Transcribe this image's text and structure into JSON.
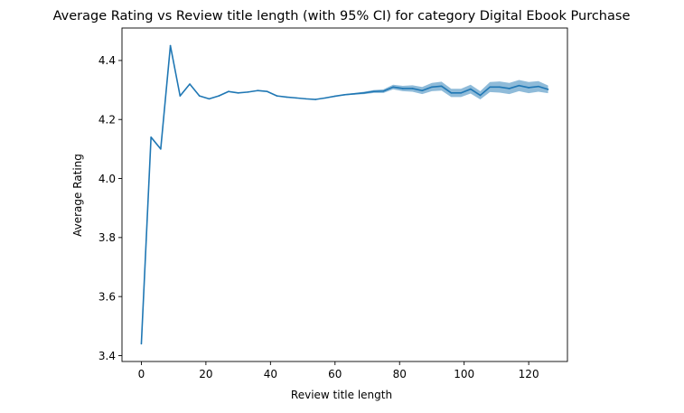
{
  "chart_data": {
    "type": "line",
    "title": "Average Rating vs Review title length (with 95% CI) for category Digital Ebook Purchase",
    "xlabel": "Review title length",
    "ylabel": "Average Rating",
    "xlim": [
      -6,
      132
    ],
    "ylim": [
      3.38,
      4.51
    ],
    "xticks": [
      0,
      20,
      40,
      60,
      80,
      100,
      120
    ],
    "yticks": [
      3.4,
      3.6,
      3.8,
      4.0,
      4.2,
      4.4
    ],
    "xtick_labels": [
      "0",
      "20",
      "40",
      "60",
      "80",
      "100",
      "120"
    ],
    "ytick_labels": [
      "3.4",
      "3.6",
      "3.8",
      "4.0",
      "4.2",
      "4.4"
    ],
    "grid": false,
    "line_color": "#1f77b4",
    "ci_color": "#1f77b4",
    "series": [
      {
        "x": [
          0,
          3,
          6,
          9,
          12,
          15,
          18,
          21,
          24,
          27,
          30,
          33,
          36,
          39,
          42,
          45,
          48,
          51,
          54,
          57,
          60,
          63,
          66,
          69,
          72,
          75,
          78,
          81,
          84,
          87,
          90,
          93,
          96,
          99,
          102,
          105,
          108,
          111,
          114,
          117,
          120,
          123,
          126
        ],
        "y": [
          3.44,
          4.14,
          4.1,
          4.45,
          4.28,
          4.32,
          4.28,
          4.27,
          4.28,
          4.295,
          4.29,
          4.293,
          4.298,
          4.295,
          4.28,
          4.276,
          4.273,
          4.27,
          4.268,
          4.273,
          4.279,
          4.284,
          4.287,
          4.29,
          4.295,
          4.296,
          4.31,
          4.305,
          4.305,
          4.298,
          4.31,
          4.313,
          4.29,
          4.29,
          4.303,
          4.282,
          4.31,
          4.31,
          4.305,
          4.315,
          4.308,
          4.312,
          4.302
        ],
        "ci_lower": [
          3.44,
          4.138,
          4.098,
          4.448,
          4.279,
          4.319,
          4.279,
          4.269,
          4.279,
          4.294,
          4.289,
          4.292,
          4.297,
          4.294,
          4.279,
          4.275,
          4.272,
          4.269,
          4.267,
          4.272,
          4.278,
          4.282,
          4.284,
          4.286,
          4.29,
          4.29,
          4.302,
          4.296,
          4.294,
          4.286,
          4.296,
          4.298,
          4.276,
          4.276,
          4.288,
          4.268,
          4.293,
          4.291,
          4.286,
          4.296,
          4.289,
          4.294,
          4.289
        ],
        "ci_upper": [
          3.44,
          4.142,
          4.102,
          4.452,
          4.281,
          4.321,
          4.281,
          4.271,
          4.281,
          4.296,
          4.291,
          4.294,
          4.299,
          4.296,
          4.281,
          4.277,
          4.274,
          4.271,
          4.269,
          4.274,
          4.28,
          4.286,
          4.29,
          4.294,
          4.3,
          4.302,
          4.318,
          4.314,
          4.316,
          4.31,
          4.324,
          4.328,
          4.304,
          4.304,
          4.318,
          4.296,
          4.327,
          4.329,
          4.324,
          4.334,
          4.327,
          4.33,
          4.315
        ]
      }
    ]
  }
}
